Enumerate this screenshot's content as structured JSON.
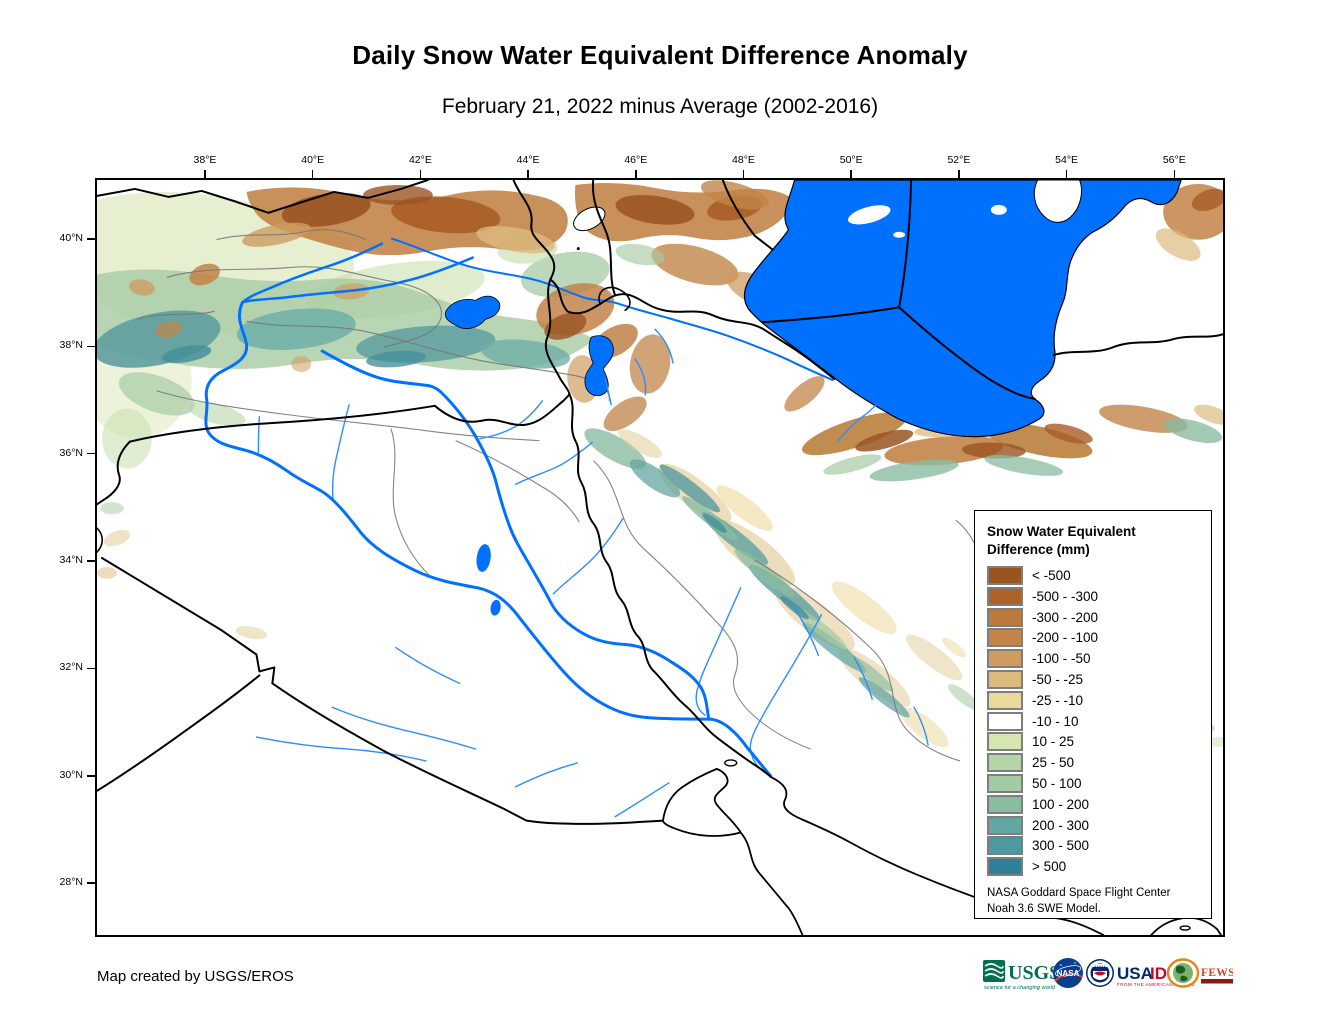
{
  "title": "Daily Snow Water Equivalent Difference Anomaly",
  "subtitle": "February 21, 2022 minus Average (2002-2016)",
  "map": {
    "top_axis_ticks": [
      "38°E",
      "40°E",
      "42°E",
      "44°E",
      "46°E",
      "48°E",
      "50°E",
      "52°E",
      "54°E",
      "56°E"
    ],
    "left_axis_ticks": [
      "40°N",
      "38°N",
      "36°N",
      "34°N",
      "32°N",
      "30°N",
      "28°N"
    ]
  },
  "legend": {
    "title_line1": "Snow Water Equivalent",
    "title_line2": "Difference (mm)",
    "items": [
      {
        "label": "< -500",
        "color": "#9A5422"
      },
      {
        "label": "-500 - -300",
        "color": "#AE6227"
      },
      {
        "label": "-300 - -200",
        "color": "#BA793D"
      },
      {
        "label": "-200 - -100",
        "color": "#C28448"
      },
      {
        "label": "-100 - -50",
        "color": "#CE9C60"
      },
      {
        "label": "-50 - -25",
        "color": "#DCBA7E"
      },
      {
        "label": "-25 - -10",
        "color": "#EBD99B"
      },
      {
        "label": "-10 - 10",
        "color": "#FFFFFF"
      },
      {
        "label": "10 - 25",
        "color": "#D6E6B1"
      },
      {
        "label": "25 - 50",
        "color": "#B4D4A6"
      },
      {
        "label": "50 - 100",
        "color": "#A3CAA3"
      },
      {
        "label": "100 - 200",
        "color": "#8ABCA0"
      },
      {
        "label": "200 - 300",
        "color": "#64A6A2"
      },
      {
        "label": "300 - 500",
        "color": "#4E98A0"
      },
      {
        "label": "> 500",
        "color": "#2F8098"
      }
    ],
    "source_line1": "NASA Goddard Space Flight Center",
    "source_line2": "Noah 3.6 SWE Model."
  },
  "footer": {
    "credit": "Map created by USGS/EROS",
    "logos": {
      "usgs": {
        "name": "USGS",
        "tagline": "science for a changing world",
        "color": "#007150"
      },
      "nasa": {
        "name": "NASA",
        "color": "#0B3D91"
      },
      "usaid": {
        "name_part1": "USA",
        "name_part2": "ID",
        "tagline": "FROM THE AMERICAN PEOPLE",
        "color_navy": "#002A6C",
        "color_red": "#BA0C2F"
      },
      "fewsnet": {
        "name": "FEWS NET",
        "color": "#D2451E"
      }
    }
  },
  "colors": {
    "water": "#0070FF",
    "minor_river": "#2F8CFF",
    "country_border": "#000000",
    "watershed_border": "#777777"
  }
}
